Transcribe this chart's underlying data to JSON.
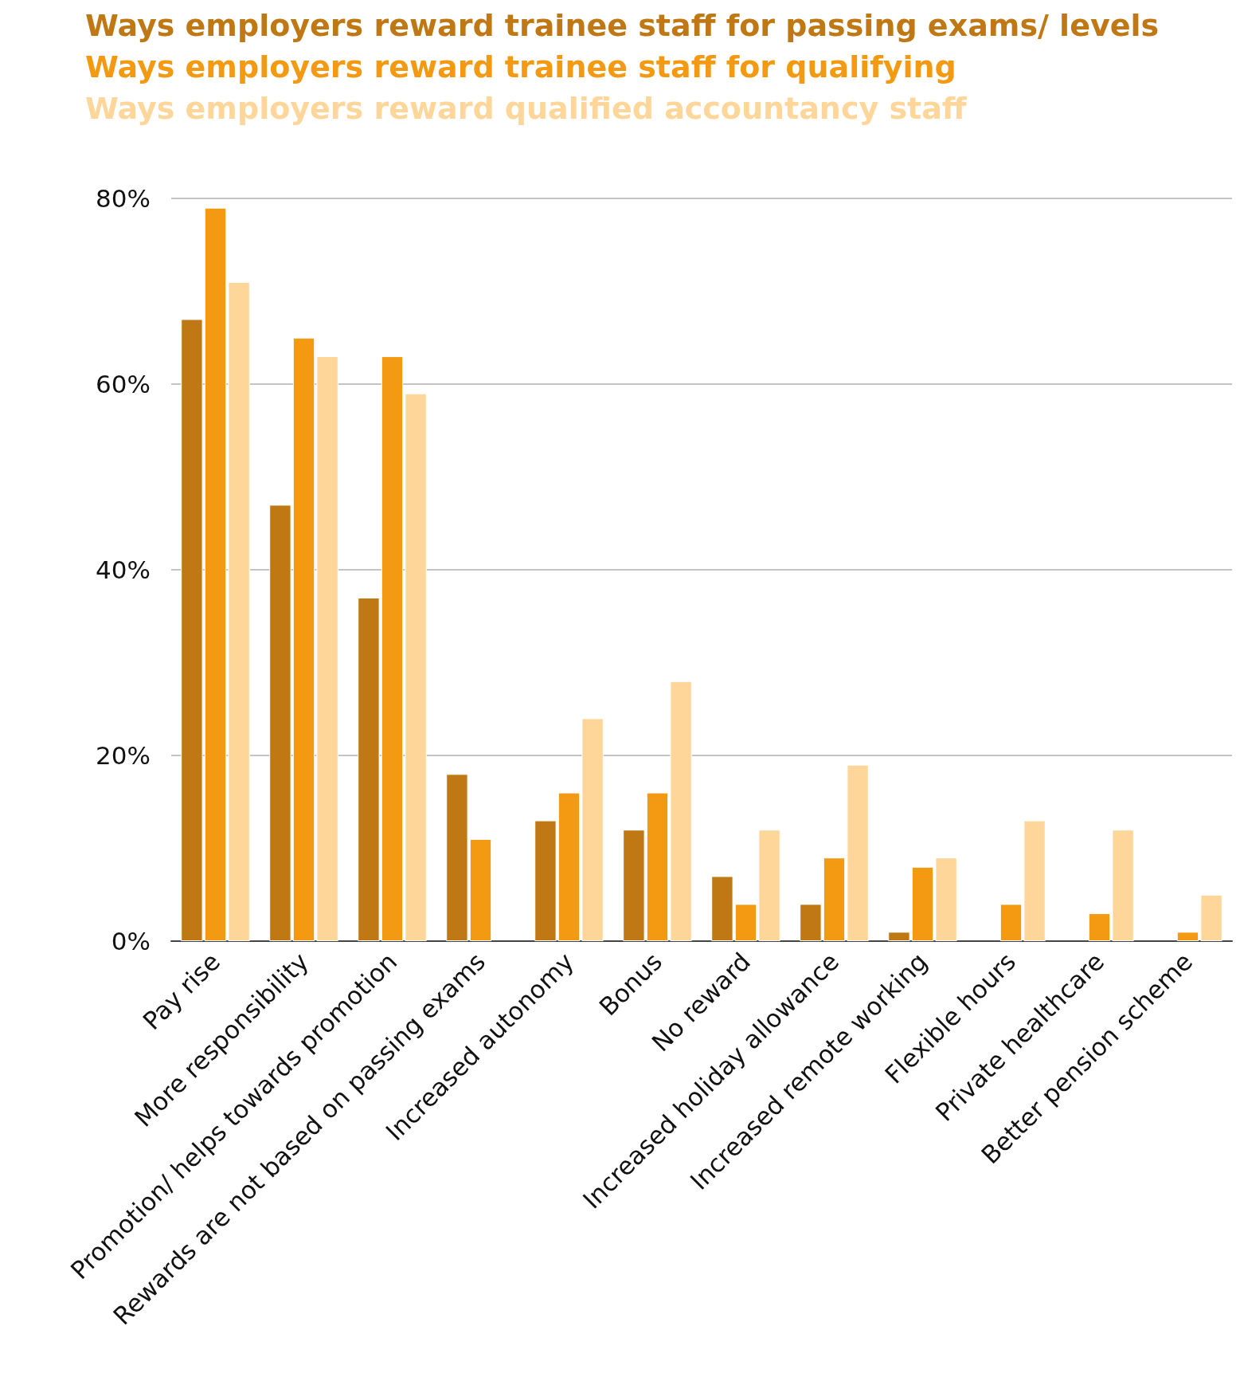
{
  "chart_data": {
    "type": "bar",
    "categories": [
      "Pay rise",
      "More responsibility",
      "Promotion/ helps towards promotion",
      "Rewards are not based on passing exams",
      "Increased autonomy",
      "Bonus",
      "No reward",
      "Increased holiday allowance",
      "Increased remote working",
      "Flexible hours",
      "Private healthcare",
      "Better pension scheme"
    ],
    "series": [
      {
        "name": "Ways employers reward trainee staff for passing exams/ levels",
        "color": "#c07814",
        "values": [
          67,
          47,
          37,
          18,
          13,
          12,
          7,
          4,
          1,
          null,
          null,
          null
        ]
      },
      {
        "name": "Ways employers reward trainee staff for qualifying",
        "color": "#f39a12",
        "values": [
          79,
          65,
          63,
          11,
          16,
          16,
          4,
          9,
          8,
          4,
          3,
          1
        ]
      },
      {
        "name": "Ways employers reward qualified accountancy staff",
        "color": "#ffd699",
        "values": [
          71,
          63,
          59,
          null,
          24,
          28,
          12,
          19,
          9,
          13,
          12,
          5
        ]
      }
    ],
    "ylim": [
      0,
      80
    ],
    "yticks": [
      {
        "value": 0,
        "label": "0%"
      },
      {
        "value": 20,
        "label": "20%"
      },
      {
        "value": 40,
        "label": "40%"
      },
      {
        "value": 60,
        "label": "60%"
      },
      {
        "value": 80,
        "label": "80%"
      }
    ],
    "grid": "y",
    "legend": "top"
  }
}
